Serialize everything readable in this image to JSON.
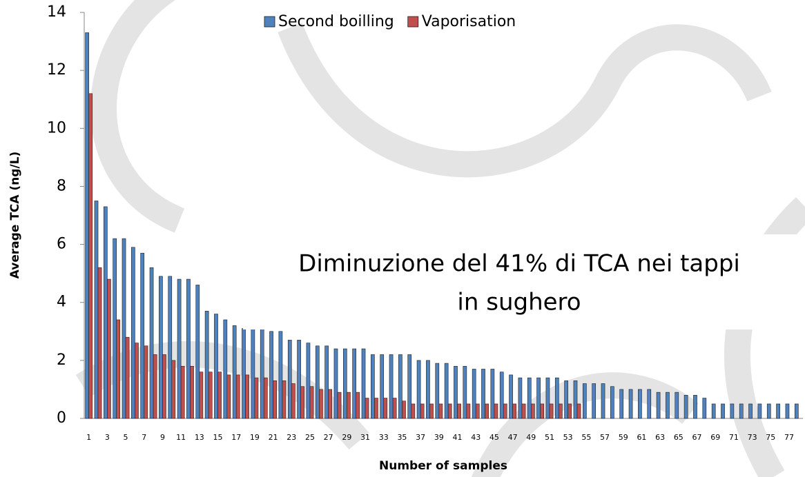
{
  "chart_data": {
    "type": "bar",
    "x_label": "Number of samples",
    "y_label": "Average TCA (ng/L)",
    "annotation": [
      "Diminuzione del 41% di TCA nei tappi",
      "in sughero"
    ],
    "categories": [
      1,
      null,
      3,
      null,
      5,
      null,
      7,
      null,
      9,
      null,
      11,
      null,
      13,
      null,
      15,
      null,
      17,
      null,
      19,
      null,
      21,
      null,
      23,
      null,
      25,
      null,
      27,
      null,
      29,
      null,
      31,
      null,
      33,
      null,
      35,
      null,
      37,
      null,
      39,
      null,
      41,
      null,
      43,
      null,
      45,
      null,
      47,
      null,
      49,
      null,
      51,
      null,
      53,
      null,
      55,
      null,
      57,
      null,
      59,
      null,
      61,
      null,
      63,
      null,
      65,
      null,
      67,
      null,
      69,
      null,
      71,
      null,
      73,
      null,
      75,
      null,
      77,
      null
    ],
    "series": [
      {
        "name": "Second boilling",
        "color": "#4f81bd",
        "values": [
          13.3,
          7.5,
          7.3,
          6.2,
          6.2,
          5.9,
          5.7,
          5.2,
          4.9,
          4.9,
          4.8,
          4.8,
          4.6,
          3.7,
          3.6,
          3.4,
          3.2,
          3.1,
          3.1,
          3.1,
          3.0,
          3.0,
          2.7,
          2.7,
          2.6,
          2.5,
          2.5,
          2.4,
          2.4,
          2.4,
          2.4,
          2.2,
          2.2,
          2.2,
          2.2,
          2.2,
          2.0,
          2.0,
          1.9,
          1.9,
          1.8,
          1.8,
          1.7,
          1.7,
          1.7,
          1.6,
          1.5,
          1.4,
          1.4,
          1.4,
          1.4,
          1.4,
          1.3,
          1.3,
          1.2,
          1.2,
          1.2,
          1.1,
          1.0,
          1.0,
          1.0,
          1.0,
          0.9,
          0.9,
          0.9,
          0.8,
          0.8,
          0.7,
          0.5,
          0.5,
          0.5,
          0.5,
          0.5,
          0.5,
          0.5,
          0.5,
          0.5,
          0.5
        ]
      },
      {
        "name": "Vaporisation",
        "color": "#c0504d",
        "values": [
          11.2,
          5.2,
          4.8,
          3.4,
          2.8,
          2.6,
          2.5,
          2.2,
          2.2,
          2.0,
          1.8,
          1.8,
          1.6,
          1.6,
          1.6,
          1.5,
          1.5,
          1.5,
          1.4,
          1.4,
          1.3,
          1.3,
          1.2,
          1.1,
          1.1,
          1.0,
          1.0,
          0.9,
          0.9,
          0.9,
          0.7,
          0.7,
          0.7,
          0.7,
          0.6,
          0.5,
          0.5,
          0.5,
          0.5,
          0.5,
          0.5,
          0.5,
          0.5,
          0.5,
          0.5,
          0.5,
          0.5,
          0.5,
          0.5,
          0.5,
          0.5,
          0.5,
          0.5,
          0.5,
          null,
          null,
          null,
          null,
          null,
          null,
          null,
          null,
          null,
          null,
          null,
          null,
          null,
          null,
          null,
          null,
          null,
          null,
          null,
          null,
          null,
          null,
          null,
          null
        ]
      }
    ],
    "ylim": [
      0,
      14
    ],
    "yticks": [
      0,
      2,
      4,
      6,
      8,
      10,
      12,
      14
    ],
    "grid": false,
    "legend": "top"
  }
}
